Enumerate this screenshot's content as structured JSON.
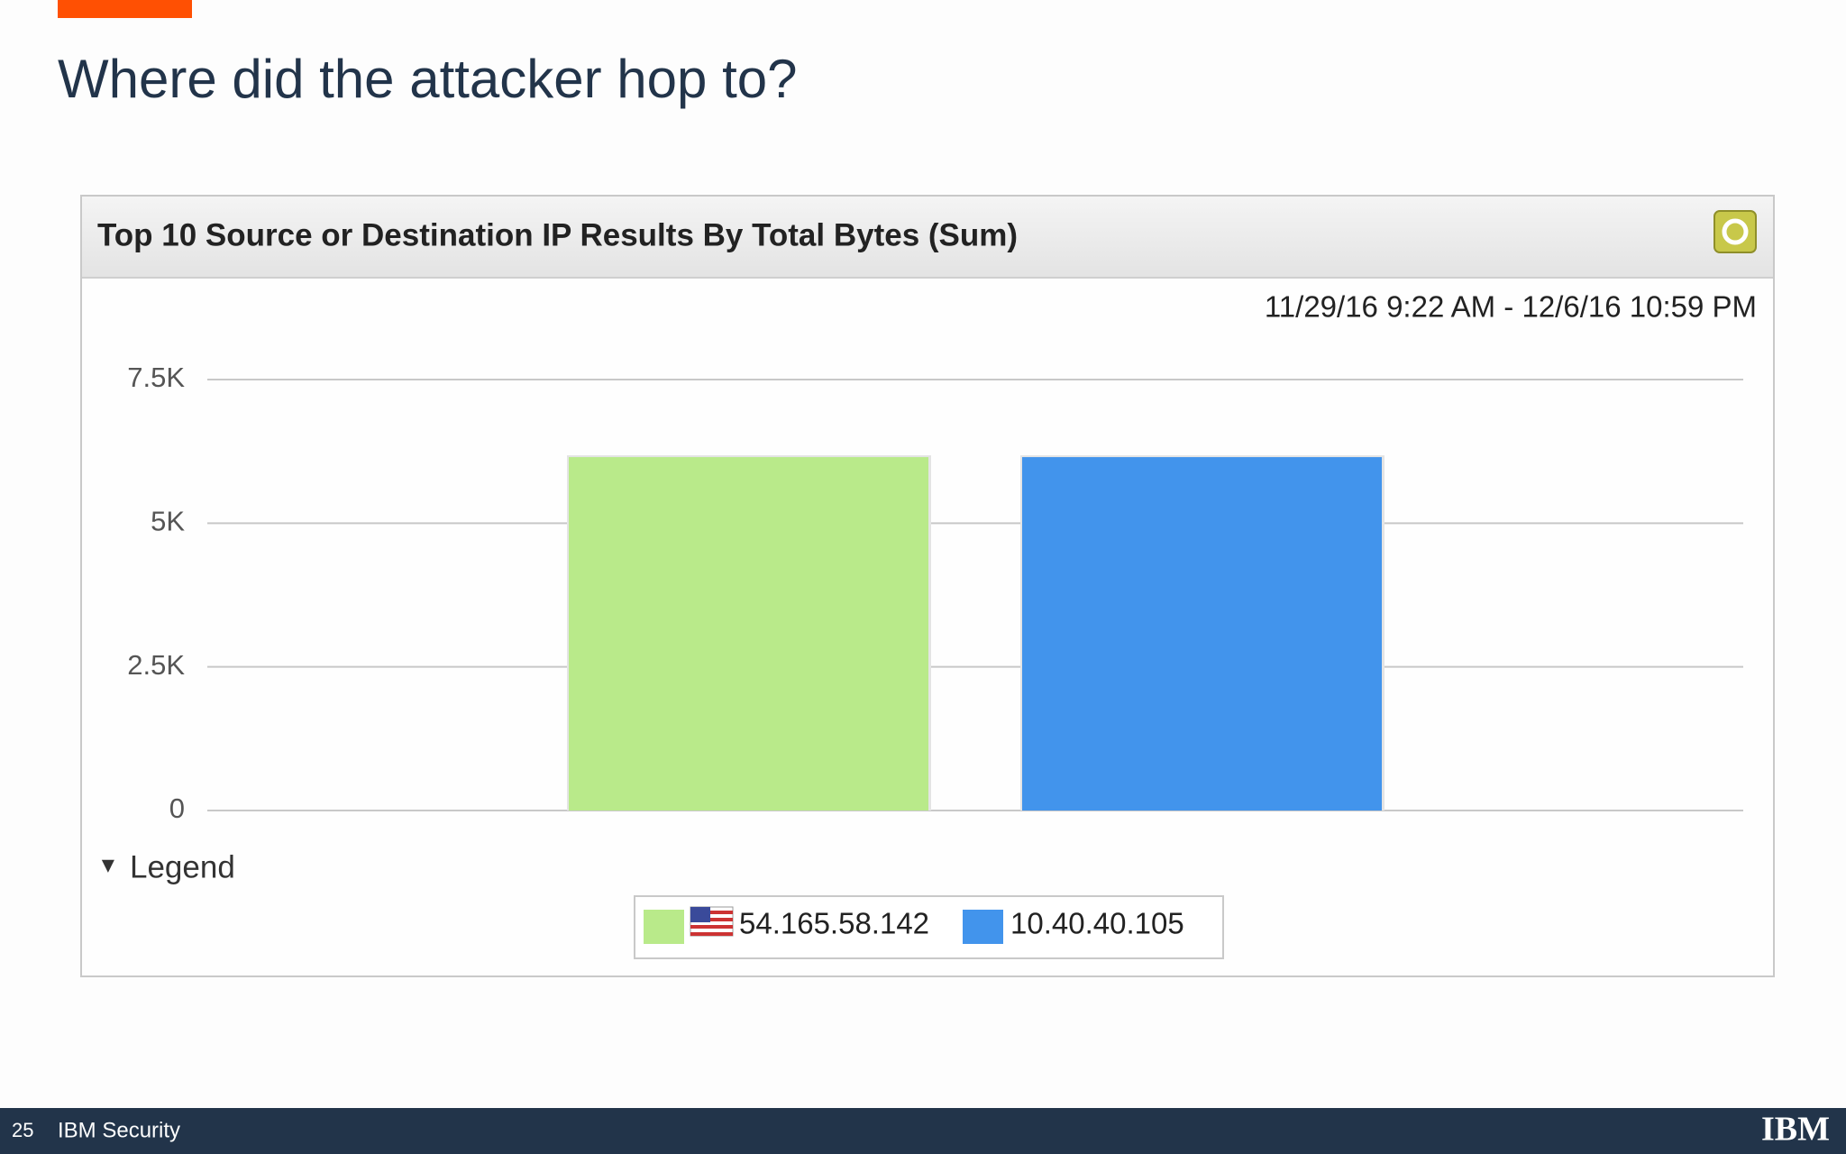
{
  "slide": {
    "title": "Where did the attacker hop to?",
    "page_number": "25",
    "footer_text": "IBM Security",
    "logo": "IBM"
  },
  "chart_data": {
    "type": "bar",
    "title": "Top 10 Source or Destination IP Results By Total Bytes (Sum)",
    "subtitle": "11/29/16 9:22 AM - 12/6/16 10:59 PM",
    "legend_title": "Legend",
    "categories": [
      null
    ],
    "series": [
      {
        "name": "54.165.58.142",
        "color": "#b9ea8a",
        "values": [
          6150
        ]
      },
      {
        "name": "10.40.40.105",
        "color": "#4294ec",
        "values": [
          6150
        ]
      }
    ],
    "ylim": [
      0,
      7500
    ],
    "yticks": [
      0,
      {
        "value": 2500,
        "label": "2.5K"
      },
      {
        "value": 5000,
        "label": "5K"
      },
      {
        "value": 7500,
        "label": "7.5K"
      }
    ],
    "grid": true
  }
}
